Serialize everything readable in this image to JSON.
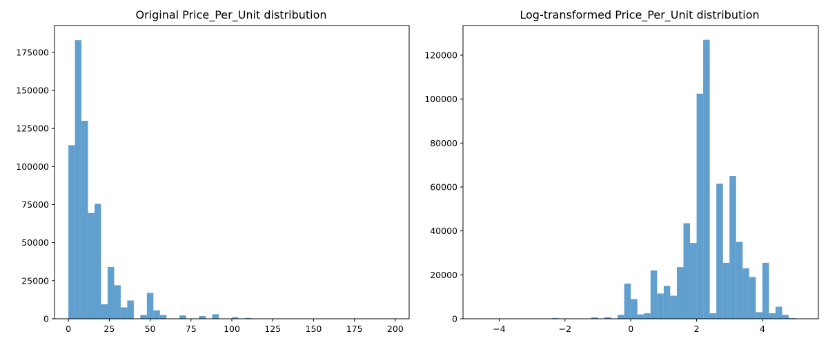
{
  "chart_data": [
    {
      "type": "bar",
      "title": "Original Price_Per_Unit distribution",
      "xlabel": "",
      "ylabel": "",
      "xlim": [
        -8.5,
        208.5
      ],
      "ylim": [
        0,
        192600
      ],
      "grid": false,
      "color": "#5b9bcc",
      "bin_width": 4,
      "bin_start": 0,
      "values": [
        114000,
        183000,
        130000,
        69500,
        75500,
        9500,
        34000,
        22000,
        7500,
        12000,
        0,
        2500,
        17000,
        5500,
        2500,
        0,
        0,
        2200,
        0,
        0,
        1800,
        0,
        3000,
        0,
        0,
        1000,
        0,
        500,
        0,
        0,
        0,
        0,
        0,
        0,
        0,
        0,
        0,
        0,
        0,
        0,
        0,
        0,
        0,
        0,
        0,
        0,
        0,
        0,
        0,
        0
      ],
      "x_ticks": [
        0,
        25,
        50,
        75,
        100,
        125,
        150,
        175,
        200
      ],
      "x_tick_labels": [
        "0",
        "25",
        "50",
        "75",
        "100",
        "125",
        "150",
        "175",
        "200"
      ],
      "y_ticks": [
        0,
        25000,
        50000,
        75000,
        100000,
        125000,
        150000,
        175000
      ],
      "y_tick_labels": [
        "0",
        "25000",
        "50000",
        "75000",
        "100000",
        "125000",
        "150000",
        "175000"
      ]
    },
    {
      "type": "bar",
      "title": "Log-transformed Price_Per_Unit distribution",
      "xlabel": "",
      "ylabel": "",
      "xlim": [
        -5.1,
        5.7
      ],
      "ylim": [
        0,
        133500
      ],
      "grid": false,
      "color": "#5b9bcc",
      "bin_width": 0.2,
      "bin_start": -4.6,
      "values": [
        100,
        0,
        0,
        0,
        0,
        0,
        0,
        0,
        0,
        0,
        0,
        300,
        0,
        0,
        0,
        0,
        0,
        600,
        0,
        700,
        0,
        1800,
        16000,
        9000,
        2000,
        2500,
        22000,
        11500,
        15000,
        10500,
        23500,
        43500,
        34500,
        102500,
        127000,
        2500,
        61500,
        25500,
        65000,
        35000,
        23000,
        19000,
        3000,
        25500,
        2500,
        5500,
        1800,
        300
      ],
      "x_ticks": [
        -4,
        -2,
        0,
        2,
        4
      ],
      "x_tick_labels": [
        "−4",
        "−2",
        "0",
        "2",
        "4"
      ],
      "y_ticks": [
        0,
        20000,
        40000,
        60000,
        80000,
        100000,
        120000
      ],
      "y_tick_labels": [
        "0",
        "20000",
        "40000",
        "60000",
        "80000",
        "100000",
        "120000"
      ]
    }
  ]
}
